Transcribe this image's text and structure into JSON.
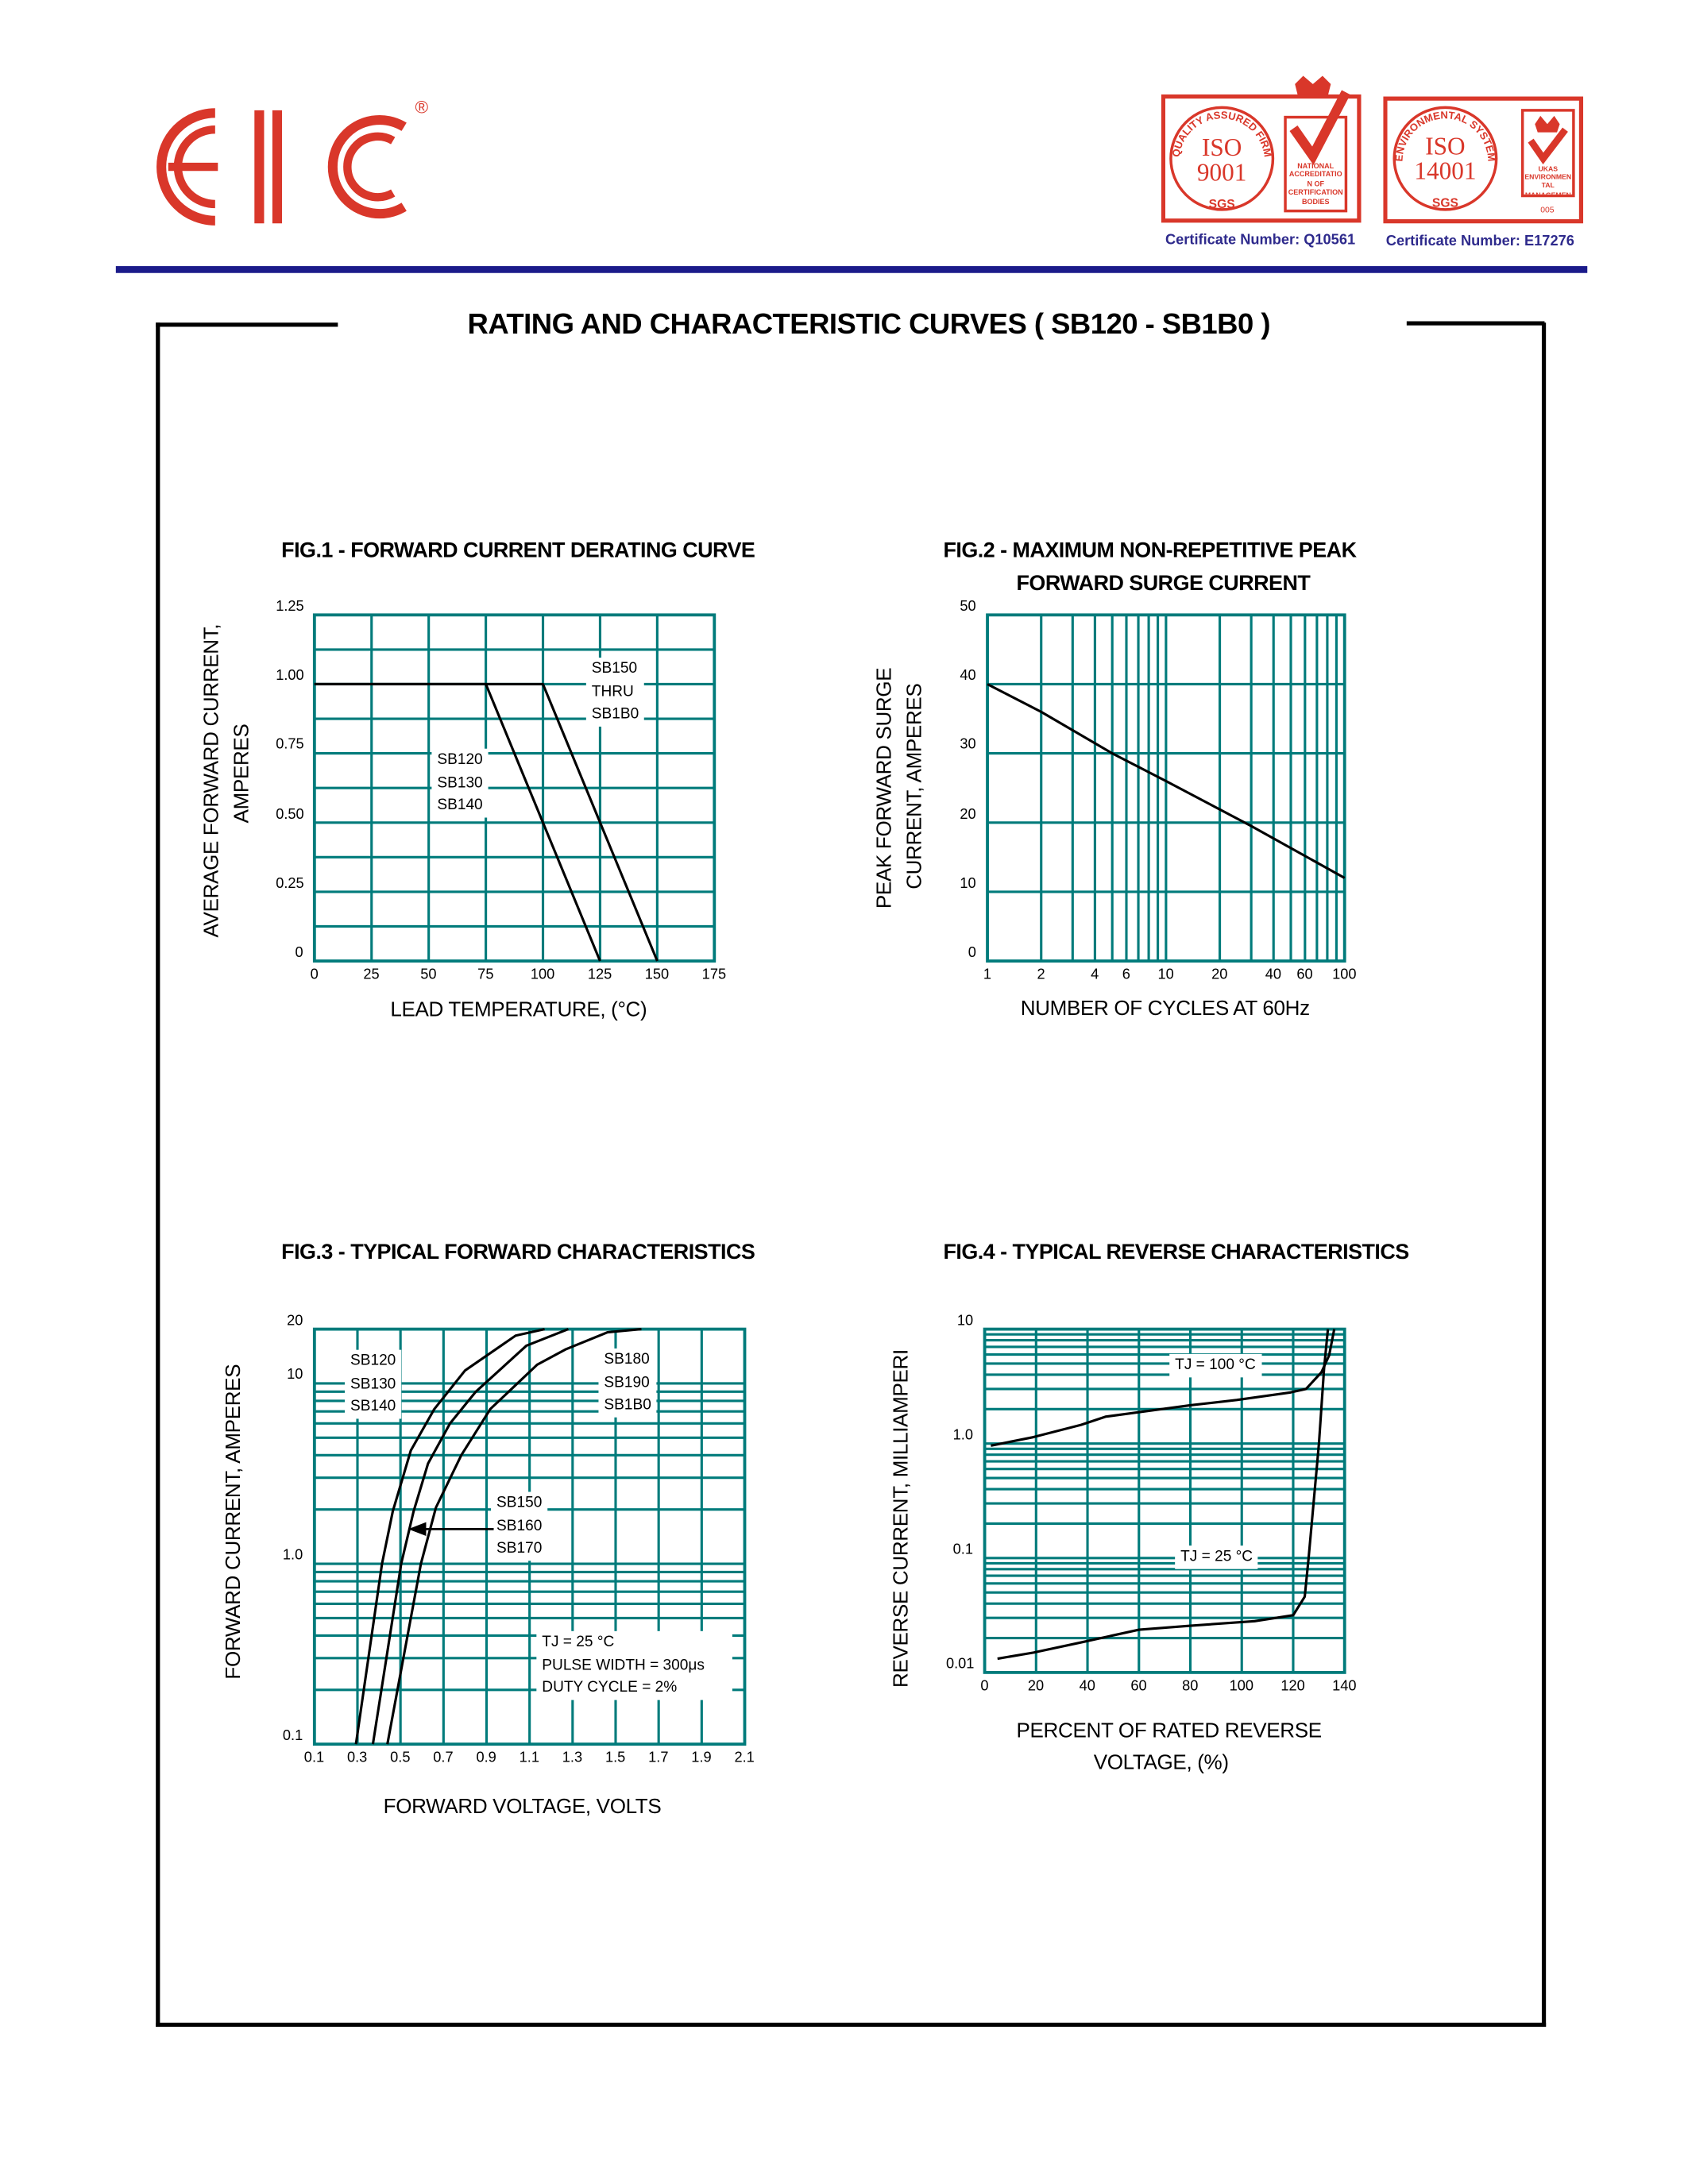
{
  "header": {
    "logo_text": "EIC",
    "logo_registered": "®",
    "cert1": {
      "ring_text": "QUALITY ASSURED FIRM",
      "standard": "ISO",
      "number": "9001",
      "body": "SGS",
      "accreditation": "NATIONAL ACCREDITATION OF CERTIFICATION BODIES",
      "certificate_label": "Certificate Number: Q10561"
    },
    "cert2": {
      "ring_text": "ENVIRONMENTAL SYSTEM",
      "standard": "ISO",
      "number": "14001",
      "body": "SGS",
      "accreditation": "UKAS ENVIRONMENTAL MANAGEMENT",
      "accreditation_code": "005",
      "certificate_label": "Certificate Number: E17276"
    },
    "brand_color": "#d9372a",
    "rule_color": "#1b1b8a"
  },
  "page_title": "RATING AND CHARACTERISTIC CURVES  ( SB120 - SB1B0 )",
  "grid_color": "#007b7b",
  "chart_data": [
    {
      "type": "line",
      "title": "FIG.1 -  FORWARD CURRENT DERATING CURVE",
      "ylabel": [
        "AVERAGE FORWARD CURRENT,",
        "AMPERES"
      ],
      "xlabel": "LEAD TEMPERATURE, (°C)",
      "xscale": "linear",
      "yscale": "linear",
      "xlim": [
        0,
        175
      ],
      "ylim": [
        0,
        1.25
      ],
      "xticks": [
        0,
        25,
        50,
        75,
        100,
        125,
        150,
        175
      ],
      "xtick_labels": [
        "0",
        "25",
        "50",
        "75",
        "100",
        "125",
        "150",
        "175"
      ],
      "yticks": [
        0,
        0.25,
        0.5,
        0.75,
        1.0,
        1.25
      ],
      "ytick_labels": [
        "0",
        "0.25",
        "0.50",
        "0.75",
        "1.00",
        "1.25"
      ],
      "grid": true,
      "series": [
        {
          "name": "SB120 SB130 SB140",
          "label_lines": [
            "SB120",
            "SB130",
            "SB140"
          ],
          "x": [
            0,
            75,
            125
          ],
          "y": [
            1.0,
            1.0,
            0
          ]
        },
        {
          "name": "SB150 THRU SB1B0",
          "label_lines": [
            "SB150",
            "THRU",
            "SB1B0"
          ],
          "x": [
            0,
            100,
            150
          ],
          "y": [
            1.0,
            1.0,
            0
          ]
        }
      ]
    },
    {
      "type": "line",
      "title": [
        "FIG.2 - MAXIMUM NON-REPETITIVE PEAK",
        "FORWARD SURGE CURRENT"
      ],
      "ylabel": [
        "PEAK FORWARD SURGE",
        "CURRENT, AMPERES"
      ],
      "xlabel": "NUMBER OF CYCLES AT 60Hz",
      "xscale": "log",
      "yscale": "linear",
      "xlim": [
        1,
        100
      ],
      "ylim": [
        0,
        50
      ],
      "xticks": [
        1,
        2,
        4,
        6,
        10,
        20,
        40,
        60,
        100
      ],
      "xtick_labels": [
        "1",
        "2",
        "4",
        "6",
        "10",
        "20",
        "40",
        "60",
        "100"
      ],
      "yticks": [
        0,
        10,
        20,
        30,
        40,
        50
      ],
      "ytick_labels": [
        "0",
        "10",
        "20",
        "30",
        "40",
        "50"
      ],
      "grid": true,
      "series": [
        {
          "x": [
            1,
            2,
            5,
            10,
            30,
            100
          ],
          "y": [
            40,
            36,
            30,
            26,
            19.5,
            12
          ]
        }
      ]
    },
    {
      "type": "line",
      "title": "FIG.3 - TYPICAL FORWARD CHARACTERISTICS",
      "ylabel": [
        "FORWARD CURRENT, AMPERES"
      ],
      "xlabel": "FORWARD VOLTAGE, VOLTS",
      "xscale": "linear",
      "yscale": "log",
      "xlim": [
        0.1,
        2.1
      ],
      "ylim": [
        0.1,
        20
      ],
      "xticks": [
        0.1,
        0.3,
        0.5,
        0.7,
        0.9,
        1.1,
        1.3,
        1.5,
        1.7,
        1.9,
        2.1
      ],
      "xtick_labels": [
        "0.1",
        "0.3",
        "0.5",
        "0.7",
        "0.9",
        "1.1",
        "1.3",
        "1.5",
        "1.7",
        "1.9",
        "2.1"
      ],
      "yticks": [
        0.1,
        1,
        10,
        20
      ],
      "ytick_labels": [
        "0.1",
        "1.0",
        "10",
        "20"
      ],
      "grid": true,
      "series": [
        {
          "name": "SB120 SB130 SB140",
          "label_lines": [
            "SB120",
            "SB130",
            "SB140"
          ],
          "x": [
            0.293,
            0.414,
            0.464,
            0.548,
            0.657,
            0.8,
            1.035,
            1.17
          ],
          "y": [
            0.1,
            1.0,
            1.95,
            4.25,
            7.2,
            11.8,
            18.4,
            20
          ]
        },
        {
          "name": "SB150 SB160 SB170",
          "label_lines": [
            "SB150",
            "SB160",
            "SB170"
          ],
          "x": [
            0.372,
            0.503,
            0.561,
            0.628,
            0.73,
            0.85,
            1.085,
            1.28
          ],
          "y": [
            0.1,
            1.0,
            1.95,
            3.6,
            6.0,
            9.0,
            16.2,
            20
          ]
        },
        {
          "name": "SB180 SB190 SB1B0",
          "label_lines": [
            "SB180",
            "SB190",
            "SB1B0"
          ],
          "x": [
            0.439,
            0.595,
            0.665,
            0.783,
            0.917,
            1.135,
            1.27,
            1.462,
            1.62
          ],
          "y": [
            0.1,
            1.0,
            2.05,
            4.0,
            7.2,
            12.7,
            15.5,
            19.2,
            20
          ]
        }
      ],
      "annotation": [
        "TJ = 25 °C",
        "PULSE WIDTH = 300μs",
        "DUTY CYCLE = 2%"
      ]
    },
    {
      "type": "line",
      "title": "FIG.4 - TYPICAL REVERSE CHARACTERISTICS",
      "ylabel": [
        "REVERSE CURRENT, MILLIAMPERI"
      ],
      "xlabel": [
        "PERCENT OF RATED REVERSE",
        "VOLTAGE, (%)"
      ],
      "xscale": "linear",
      "yscale": "log",
      "xlim": [
        0,
        140
      ],
      "ylim": [
        0.01,
        10
      ],
      "xticks": [
        0,
        20,
        40,
        60,
        80,
        100,
        120,
        140
      ],
      "xtick_labels": [
        "0",
        "20",
        "40",
        "60",
        "80",
        "100",
        "120",
        "140"
      ],
      "yticks": [
        0.01,
        0.1,
        1,
        10
      ],
      "ytick_labels": [
        "0.01",
        "0.1",
        "1.0",
        "10"
      ],
      "grid": true,
      "series": [
        {
          "name": "TJ = 100 °C",
          "x": [
            2.4,
            19,
            37.5,
            47,
            80,
            98,
            119,
            125,
            131,
            134,
            136
          ],
          "y": [
            0.96,
            1.14,
            1.46,
            1.72,
            2.16,
            2.4,
            2.8,
            3.0,
            4.2,
            5.9,
            10
          ]
        },
        {
          "name": "TJ = 25 °C",
          "x": [
            5,
            19,
            37.5,
            60,
            80,
            105,
            120,
            124.5,
            126,
            130,
            132,
            133.5
          ],
          "y": [
            0.0132,
            0.0149,
            0.0183,
            0.0236,
            0.0256,
            0.0281,
            0.0316,
            0.046,
            0.1,
            1.0,
            4.5,
            10
          ]
        }
      ]
    }
  ]
}
